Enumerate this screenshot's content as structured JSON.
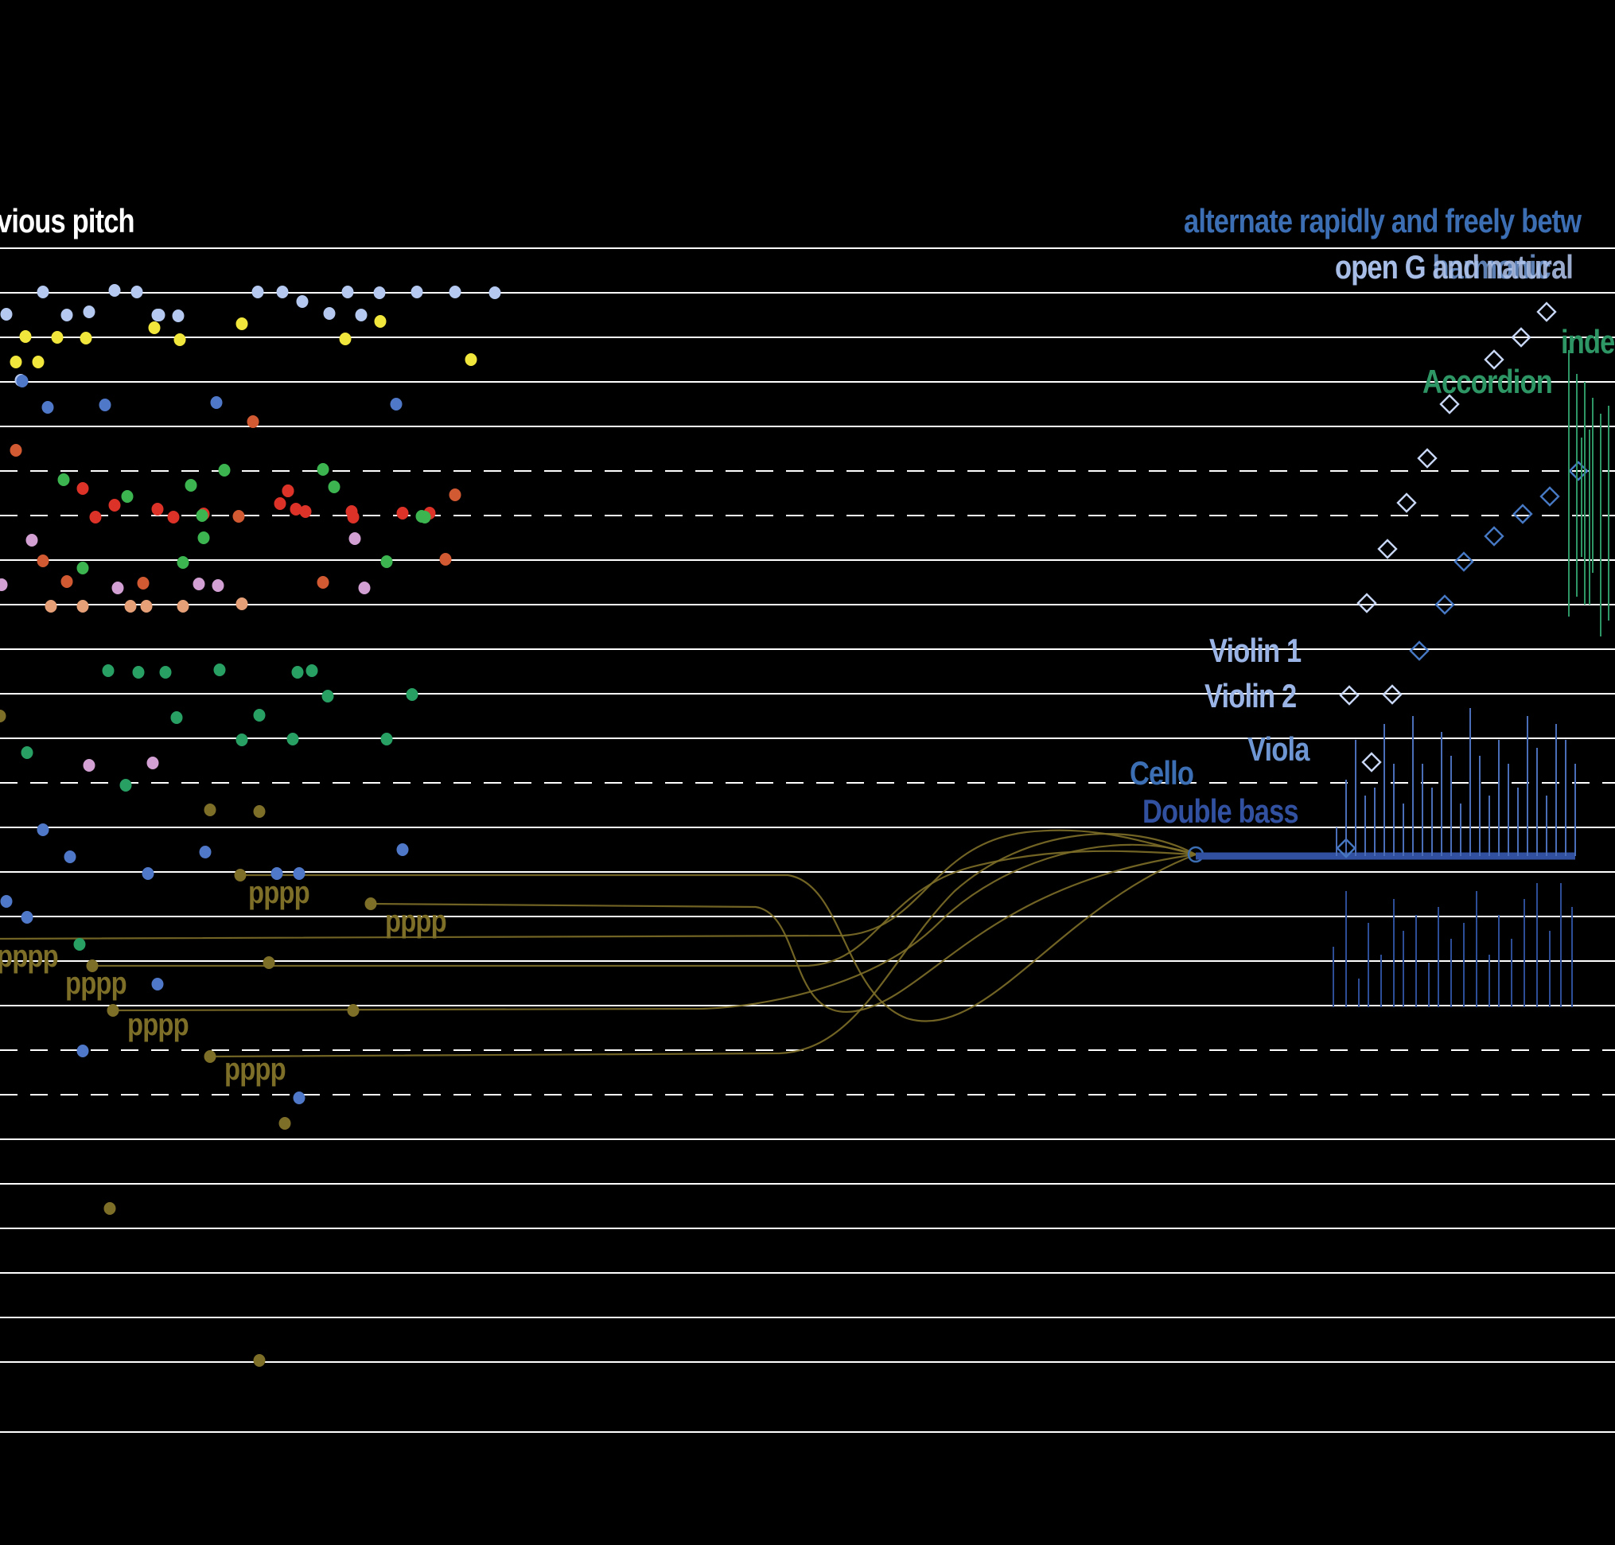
{
  "texts": {
    "top_left": "vious pitch",
    "top_right": "alternate rapidly and freely betw",
    "open_line_a": "open G harmonic",
    "open_line_b": "open G and natural",
    "inde": "inde",
    "accordion": "Accordion",
    "violin1": "Violin 1",
    "violin2": "Violin 2",
    "viola": "Viola",
    "cello": "Cello",
    "double_bass": "Double bass",
    "dyn1": "pppp",
    "dyn2": "pppp",
    "dyn3": "pppp",
    "dyn4": "pppp",
    "dyn5": "pppp",
    "dyn6": "pppp"
  },
  "colors": {
    "background": "#000000",
    "staff_line": "#ffffff",
    "light_blue": "#b4c8f0",
    "yellow": "#f0e63c",
    "blue": "#5078c8",
    "red": "#dc3228",
    "orange_red": "#d25a32",
    "green": "#3cb450",
    "teal_green": "#28a064",
    "pink": "#d2a0d2",
    "peach": "#e6a078",
    "olive": "#7d6e28",
    "title_blue": "#3c6eb4",
    "label_blue": "#9bb4e6",
    "label_mid_blue": "#6e96d2",
    "cello_blue": "#3c6eb4",
    "bass_blue": "#3250a0",
    "accordion_green": "#2d9664",
    "dynamics": "#7d6e28"
  }
}
